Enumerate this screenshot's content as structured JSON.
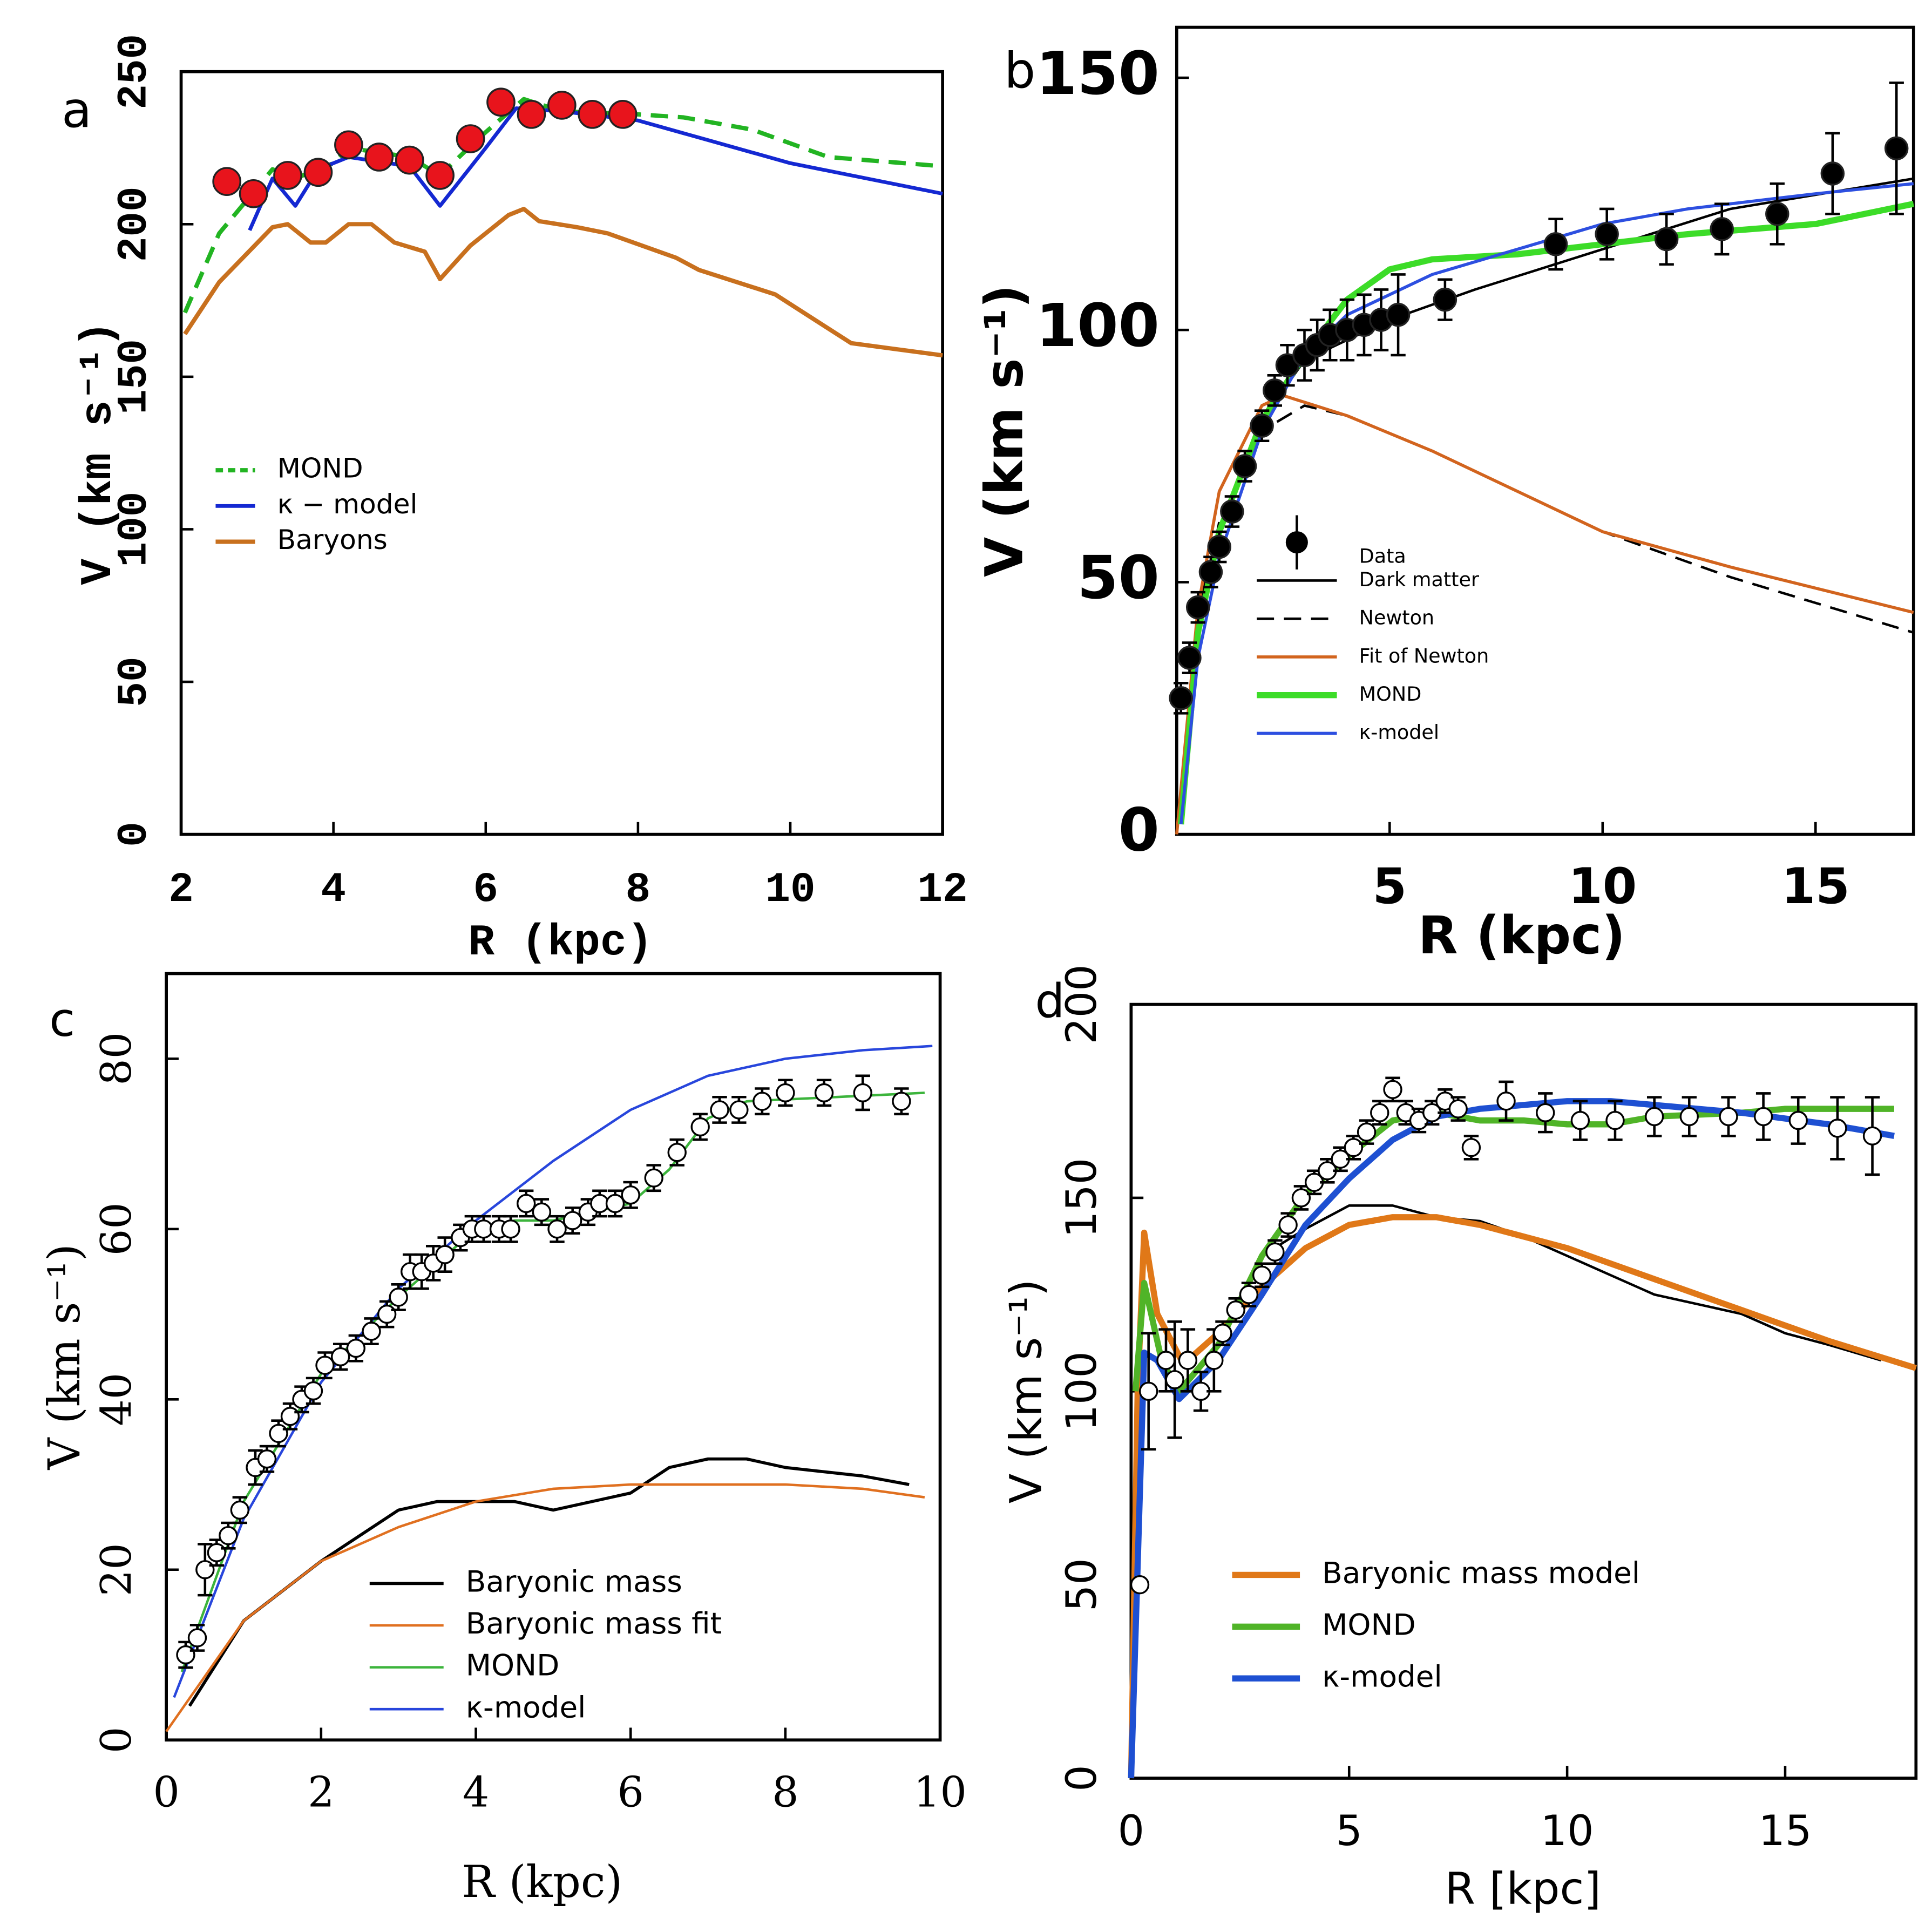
{
  "chart_data": [
    {
      "type": "line",
      "label": "a",
      "xlabel": "R (kpc)",
      "ylabel": "V (km s⁻¹)",
      "xlim": [
        2,
        12
      ],
      "ylim": [
        0,
        250
      ],
      "xticks": [
        2,
        4,
        6,
        8,
        10,
        12
      ],
      "yticks": [
        0,
        50,
        100,
        150,
        200,
        250
      ],
      "legend_loc": "center left",
      "series": [
        {
          "color": "#e8141c",
          "marker": "filled",
          "x": [
            2.6,
            2.95,
            3.4,
            3.8,
            4.2,
            4.6,
            5.0,
            5.4,
            5.8,
            6.2,
            6.6,
            7.0,
            7.4,
            7.8
          ],
          "values": [
            214,
            210,
            216,
            217,
            226,
            222,
            221,
            216,
            228,
            240,
            236,
            239,
            236,
            236
          ]
        },
        {
          "name": "MOND",
          "color": "#22b422",
          "style": "dashed",
          "x": [
            2.05,
            2.5,
            3.2,
            3.5,
            4.0,
            4.2,
            5.0,
            5.4,
            5.9,
            6.5,
            7.0,
            8.0,
            8.6,
            9.5,
            10.5,
            12
          ],
          "values": [
            171,
            197,
            218,
            215,
            220,
            225,
            222,
            216,
            228,
            241,
            237,
            236,
            235,
            231,
            222,
            219
          ]
        },
        {
          "name": "κ − model",
          "color": "#1428d2",
          "x": [
            2.9,
            3.2,
            3.5,
            3.8,
            4.2,
            5.0,
            5.4,
            6.0,
            6.4,
            7.0,
            8.0,
            10.0,
            12.0
          ],
          "values": [
            198,
            215,
            206,
            218,
            222,
            219,
            206,
            225,
            238,
            237,
            234,
            220,
            210
          ]
        },
        {
          "name": "Baryons",
          "color": "#c8701e",
          "x": [
            2.05,
            2.5,
            3.2,
            3.4,
            3.7,
            3.9,
            4.2,
            4.5,
            4.8,
            5.2,
            5.4,
            5.8,
            6.3,
            6.5,
            6.7,
            7.2,
            7.6,
            8.5,
            8.8,
            9.8,
            10.8,
            12
          ],
          "values": [
            164,
            181,
            199,
            200,
            194,
            194,
            200,
            200,
            194,
            191,
            182,
            193,
            203,
            205,
            201,
            199,
            197,
            189,
            185,
            177,
            161,
            157
          ]
        }
      ]
    },
    {
      "type": "line",
      "label": "b",
      "xlabel": "R (kpc)",
      "ylabel": "V (km s⁻¹)",
      "xlim": [
        0,
        17.3
      ],
      "ylim": [
        0,
        160
      ],
      "xticks": [
        5,
        10,
        15
      ],
      "yticks": [
        0,
        50,
        100,
        150
      ],
      "legend_loc": "lower left",
      "series": [
        {
          "name": "Data",
          "color": "#000000",
          "marker": "filled",
          "x": [
            0.1,
            0.3,
            0.5,
            0.8,
            1,
            1.3,
            1.6,
            2,
            2.3,
            2.6,
            3,
            3.3,
            3.6,
            4,
            4.4,
            4.8,
            5.2,
            6.3,
            8.9,
            10.1,
            11.5,
            12.8,
            14.1,
            15.4,
            16.9
          ],
          "values": [
            27,
            35,
            45,
            52,
            57,
            64,
            73,
            81,
            88,
            93,
            95,
            97,
            99,
            100,
            101,
            102,
            103,
            106,
            117,
            119,
            118,
            120,
            123,
            131,
            136
          ],
          "errors": [
            3,
            3,
            3,
            3,
            3,
            3,
            3,
            3,
            3,
            4,
            5,
            5,
            5,
            6,
            6,
            6,
            8,
            4,
            5,
            5,
            5,
            5,
            6,
            8,
            13
          ]
        },
        {
          "name": "Dark matter",
          "color": "#000000",
          "x": [
            0,
            0.5,
            1,
            2,
            3,
            5,
            7,
            10,
            13,
            17.3
          ],
          "values": [
            0,
            45,
            60,
            82,
            94,
            102,
            108,
            116,
            124,
            130
          ]
        },
        {
          "name": "Newton",
          "color": "#000000",
          "style": "dashed",
          "x": [
            0,
            0.5,
            1,
            2,
            3,
            4,
            6,
            8,
            10,
            13,
            17.3
          ],
          "values": [
            0,
            40,
            62,
            80,
            85,
            83,
            76,
            68,
            60,
            51,
            40
          ]
        },
        {
          "name": "Fit of Newton",
          "color": "#d2641e",
          "x": [
            0,
            0.5,
            1,
            2,
            2.5,
            4,
            6,
            8,
            10,
            13,
            17.3
          ],
          "values": [
            0,
            45,
            68,
            85,
            87,
            83,
            76,
            68,
            60,
            53,
            44
          ]
        },
        {
          "name": "MOND",
          "color": "#3cdc28",
          "x": [
            0.1,
            0.5,
            1,
            2,
            3,
            4,
            5,
            6,
            8,
            10,
            12,
            15,
            17.3
          ],
          "values": [
            2,
            40,
            60,
            82,
            95,
            106,
            112,
            114,
            115,
            117,
            119,
            121,
            125
          ]
        },
        {
          "name": "κ-model",
          "color": "#2d4fe0",
          "x": [
            0.1,
            0.5,
            1,
            2,
            3,
            4,
            6,
            8,
            10,
            12,
            15,
            17.3
          ],
          "values": [
            2,
            35,
            55,
            80,
            95,
            103,
            111,
            116,
            121,
            124,
            127,
            129
          ]
        }
      ]
    },
    {
      "type": "line",
      "label": "c",
      "xlabel": "R (kpc)",
      "ylabel": "V (km s⁻¹)",
      "xlim": [
        0,
        10
      ],
      "ylim": [
        0,
        90
      ],
      "xticks": [
        0,
        2,
        4,
        6,
        8,
        10
      ],
      "yticks": [
        0,
        20,
        40,
        60,
        80
      ],
      "legend_loc": "lower center",
      "series": [
        {
          "color": "#000000",
          "marker": "open",
          "x": [
            0.25,
            0.4,
            0.5,
            0.65,
            0.8,
            0.95,
            1.15,
            1.3,
            1.45,
            1.6,
            1.75,
            1.9,
            2.05,
            2.25,
            2.45,
            2.65,
            2.85,
            3.0,
            3.15,
            3.3,
            3.45,
            3.6,
            3.8,
            3.95,
            4.1,
            4.3,
            4.45,
            4.65,
            4.85,
            5.05,
            5.25,
            5.45,
            5.6,
            5.8,
            6.0,
            6.3,
            6.6,
            6.9,
            7.15,
            7.4,
            7.7,
            8.0,
            8.5,
            9.0,
            9.5
          ],
          "values": [
            10,
            12,
            20,
            22,
            24,
            27,
            32,
            33,
            36,
            38,
            40,
            41,
            44,
            45,
            46,
            48,
            50,
            52,
            55,
            55,
            56,
            57,
            59,
            60,
            60,
            60,
            60,
            63,
            62,
            60,
            61,
            62,
            63,
            63,
            64,
            66,
            69,
            72,
            74,
            74,
            75,
            76,
            76,
            76,
            75
          ],
          "errors": [
            1.5,
            1.5,
            3,
            1.5,
            1.5,
            1.5,
            2,
            1.5,
            1.5,
            1.5,
            1.5,
            1.5,
            1.5,
            1.5,
            1.5,
            1.5,
            1.5,
            1.5,
            2,
            2,
            2,
            2,
            1.5,
            1.5,
            1.5,
            1.5,
            1.5,
            1.5,
            1.5,
            1.5,
            1.5,
            1.5,
            1.5,
            1.5,
            1.5,
            1.5,
            1.5,
            1.5,
            1.5,
            1.5,
            1.5,
            1.5,
            1.5,
            2,
            1.5
          ]
        },
        {
          "name": "Baryonic mass",
          "color": "#000000",
          "x": [
            0.3,
            1,
            2,
            3,
            3.5,
            4,
            4.5,
            5,
            6,
            6.5,
            7,
            7.5,
            8,
            9,
            9.6
          ],
          "values": [
            4,
            14,
            21,
            27,
            28,
            28,
            28,
            27,
            29,
            32,
            33,
            33,
            32,
            31,
            30
          ]
        },
        {
          "name": "Baryonic mass fit",
          "color": "#e07020",
          "x": [
            0,
            1,
            2,
            3,
            4,
            5,
            6,
            7,
            8,
            9,
            9.8
          ],
          "values": [
            1,
            14,
            21,
            25,
            28,
            29.5,
            30,
            30,
            30,
            29.5,
            28.5
          ]
        },
        {
          "name": "MOND",
          "color": "#3cb43c",
          "x": [
            0.2,
            1,
            2,
            3,
            4,
            4.5,
            5,
            5.5,
            6,
            6.5,
            7,
            7.5,
            9.8
          ],
          "values": [
            8,
            28,
            43,
            52,
            60,
            61,
            61,
            62,
            63,
            67,
            73,
            75,
            76
          ]
        },
        {
          "name": "κ-model",
          "color": "#2846dc",
          "x": [
            0.1,
            1,
            2,
            3,
            4,
            5,
            6,
            7,
            8,
            9,
            9.9
          ],
          "values": [
            5,
            26,
            42,
            53,
            61,
            68,
            74,
            78,
            80,
            81,
            81.5
          ]
        }
      ]
    },
    {
      "type": "line",
      "label": "d",
      "xlabel": "R [kpc]",
      "ylabel": "V (km s⁻¹)",
      "xlim": [
        0,
        18
      ],
      "ylim": [
        0,
        200
      ],
      "xticks": [
        0,
        5,
        10,
        15
      ],
      "yticks": [
        0,
        50,
        100,
        150,
        200
      ],
      "legend_loc": "lower left",
      "series": [
        {
          "color": "#000000",
          "marker": "open",
          "x": [
            0.2,
            0.4,
            0.8,
            1,
            1.3,
            1.6,
            1.9,
            2.1,
            2.4,
            2.7,
            3,
            3.3,
            3.6,
            3.9,
            4.2,
            4.5,
            4.8,
            5.1,
            5.4,
            5.7,
            6,
            6.3,
            6.6,
            6.9,
            7.2,
            7.5,
            7.8,
            8.6,
            9.5,
            10.3,
            11.1,
            12,
            12.8,
            13.7,
            14.5,
            15.3,
            16.2,
            17
          ],
          "values": [
            50,
            100,
            108,
            103,
            108,
            100,
            108,
            115,
            121,
            125,
            130,
            136,
            143,
            150,
            154,
            157,
            160,
            163,
            167,
            172,
            178,
            172,
            170,
            172,
            175,
            173,
            163,
            175,
            172,
            170,
            170,
            171,
            171,
            171,
            171,
            170,
            168,
            166
          ],
          "errors": [
            0,
            15,
            8,
            15,
            8,
            5,
            8,
            3,
            3,
            3,
            3,
            3,
            3,
            3,
            3,
            3,
            3,
            3,
            3,
            3,
            3,
            3,
            3,
            3,
            3,
            3,
            3,
            5,
            5,
            5,
            5,
            5,
            5,
            5,
            6,
            6,
            8,
            10
          ]
        },
        {
          "color": "#000000",
          "x": [
            3,
            4,
            5,
            6,
            7,
            8,
            9,
            10,
            11,
            12,
            14,
            15,
            16,
            17.2
          ],
          "values": [
            135,
            142,
            148,
            148,
            145,
            144,
            140,
            135,
            130,
            125,
            120,
            115,
            112,
            108
          ]
        },
        {
          "name": "Baryonic mass model",
          "color": "#e07818",
          "x": [
            0,
            0.15,
            0.3,
            0.6,
            1.2,
            2,
            3,
            4,
            5,
            6,
            7,
            8,
            10,
            12,
            14,
            16,
            18
          ],
          "values": [
            0,
            100,
            141,
            120,
            107,
            115,
            127,
            137,
            143,
            145,
            145,
            143,
            137,
            129,
            121,
            113,
            106
          ]
        },
        {
          "name": "MOND",
          "color": "#50b428",
          "x": [
            0.1,
            0.3,
            0.7,
            1.1,
            2,
            3,
            4,
            5,
            6,
            7,
            8,
            9,
            10,
            11,
            12,
            14,
            15,
            17.5
          ],
          "values": [
            100,
            128,
            108,
            100,
            112,
            135,
            151,
            161,
            170,
            172,
            170,
            170,
            169,
            169,
            171,
            172,
            173,
            173
          ]
        },
        {
          "name": "κ-model",
          "color": "#1e50d2",
          "x": [
            0,
            0.3,
            0.6,
            1.1,
            2,
            3,
            4,
            5,
            6,
            7,
            8,
            9,
            10,
            11,
            12,
            14,
            16,
            17.5
          ],
          "values": [
            0,
            110,
            108,
            98,
            108,
            125,
            143,
            155,
            165,
            171,
            173,
            174,
            175,
            175,
            174,
            172,
            169,
            166
          ]
        }
      ]
    }
  ]
}
